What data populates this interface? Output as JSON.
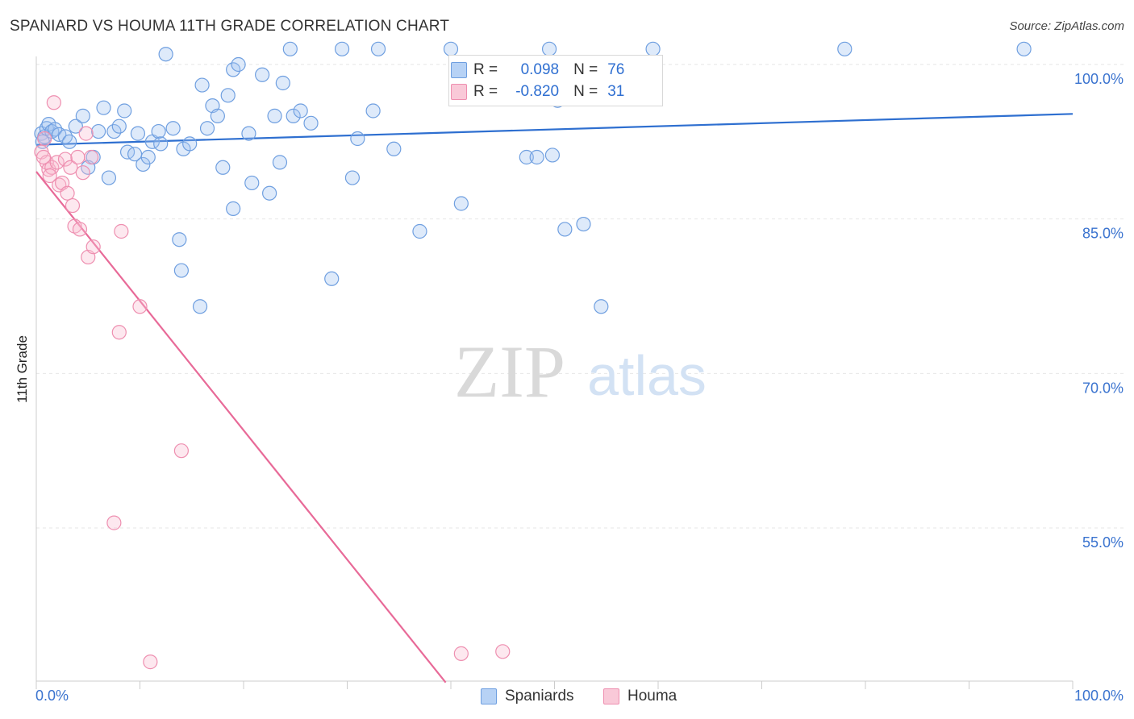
{
  "header": {
    "title": "SPANIARD VS HOUMA 11TH GRADE CORRELATION CHART",
    "source": "Source: ZipAtlas.com"
  },
  "watermark": {
    "zip": "ZIP",
    "atlas": "atlas"
  },
  "legend": {
    "rows": [
      {
        "r_label": "R =",
        "r_value": "0.098",
        "n_label": "N =",
        "n_value": "76",
        "color": "#6f9fe0"
      },
      {
        "r_label": "R =",
        "r_value": "-0.820",
        "n_label": "N =",
        "n_value": "31",
        "color": "#ee8fb0"
      }
    ]
  },
  "bottom_legend": [
    {
      "label": "Spaniards",
      "color": "#6f9fe0"
    },
    {
      "label": "Houma",
      "color": "#ee8fb0"
    }
  ],
  "chart_data": {
    "type": "scatter",
    "title": "SPANIARD VS HOUMA 11TH GRADE CORRELATION CHART",
    "xlabel": "",
    "ylabel": "11th Grade",
    "xlim": [
      0,
      100
    ],
    "ylim": [
      40,
      101.5
    ],
    "x_tick_labels": [
      "0.0%",
      "100.0%"
    ],
    "y_ticks": [
      100,
      85,
      70,
      55
    ],
    "y_tick_labels": [
      "100.0%",
      "85.0%",
      "70.0%",
      "55.0%"
    ],
    "grid": true,
    "legend_position": "top-center",
    "series": [
      {
        "name": "Spaniards",
        "color": "#6f9fe0",
        "trend": {
          "x": [
            0,
            100
          ],
          "y": [
            92.2,
            95.2
          ]
        },
        "points": [
          [
            0.5,
            93.3
          ],
          [
            0.8,
            93.0
          ],
          [
            1.0,
            93.8
          ],
          [
            1.2,
            94.2
          ],
          [
            1.5,
            93.5
          ],
          [
            1.8,
            93.7
          ],
          [
            2.2,
            93.2
          ],
          [
            2.8,
            93.0
          ],
          [
            3.2,
            92.5
          ],
          [
            3.8,
            94.0
          ],
          [
            4.5,
            95.0
          ],
          [
            5.0,
            90.0
          ],
          [
            5.5,
            91.0
          ],
          [
            6.5,
            95.8
          ],
          [
            7.0,
            89.0
          ],
          [
            7.5,
            93.5
          ],
          [
            8.0,
            94.0
          ],
          [
            8.5,
            95.5
          ],
          [
            8.8,
            91.5
          ],
          [
            9.5,
            91.3
          ],
          [
            9.8,
            93.3
          ],
          [
            10.3,
            90.3
          ],
          [
            10.8,
            91.0
          ],
          [
            11.2,
            92.5
          ],
          [
            11.8,
            93.5
          ],
          [
            12.0,
            92.3
          ],
          [
            12.5,
            101.0
          ],
          [
            13.2,
            93.8
          ],
          [
            14.2,
            91.8
          ],
          [
            14.8,
            92.3
          ],
          [
            13.8,
            83.0
          ],
          [
            14.0,
            80.0
          ],
          [
            15.8,
            76.5
          ],
          [
            16.0,
            98.0
          ],
          [
            16.5,
            93.8
          ],
          [
            17.0,
            96.0
          ],
          [
            17.5,
            95.0
          ],
          [
            18.0,
            90.0
          ],
          [
            18.5,
            97.0
          ],
          [
            19.0,
            99.5
          ],
          [
            19.5,
            100.0
          ],
          [
            20.5,
            93.3
          ],
          [
            20.8,
            88.5
          ],
          [
            19.0,
            86.0
          ],
          [
            21.8,
            99.0
          ],
          [
            22.5,
            87.5
          ],
          [
            23.0,
            95.0
          ],
          [
            23.5,
            90.5
          ],
          [
            23.8,
            98.2
          ],
          [
            24.5,
            101.5
          ],
          [
            24.8,
            95.0
          ],
          [
            25.5,
            95.5
          ],
          [
            26.5,
            94.3
          ],
          [
            28.5,
            79.2
          ],
          [
            29.5,
            101.5
          ],
          [
            30.5,
            89.0
          ],
          [
            31.0,
            92.8
          ],
          [
            32.5,
            95.5
          ],
          [
            33.0,
            101.5
          ],
          [
            34.5,
            91.8
          ],
          [
            37.0,
            83.8
          ],
          [
            40.0,
            101.5
          ],
          [
            41.0,
            86.5
          ],
          [
            47.3,
            91.0
          ],
          [
            48.3,
            91.0
          ],
          [
            49.8,
            91.2
          ],
          [
            49.5,
            101.5
          ],
          [
            50.3,
            96.5
          ],
          [
            51.0,
            84.0
          ],
          [
            52.8,
            84.5
          ],
          [
            54.5,
            76.5
          ],
          [
            59.5,
            101.5
          ],
          [
            78.0,
            101.5
          ],
          [
            95.3,
            101.5
          ],
          [
            0.6,
            92.5
          ],
          [
            6.0,
            93.5
          ]
        ]
      },
      {
        "name": "Houma",
        "color": "#ee8fb0",
        "trend": {
          "x": [
            0,
            39.5
          ],
          "y": [
            89.6,
            40
          ]
        },
        "points": [
          [
            0.5,
            91.5
          ],
          [
            0.8,
            92.8
          ],
          [
            1.0,
            90.5
          ],
          [
            1.2,
            89.8
          ],
          [
            1.5,
            90.0
          ],
          [
            1.7,
            96.3
          ],
          [
            2.0,
            90.5
          ],
          [
            2.2,
            88.3
          ],
          [
            2.5,
            88.5
          ],
          [
            2.8,
            90.8
          ],
          [
            3.0,
            87.5
          ],
          [
            3.3,
            90.0
          ],
          [
            3.5,
            86.3
          ],
          [
            3.7,
            84.3
          ],
          [
            4.0,
            91.0
          ],
          [
            4.2,
            84.0
          ],
          [
            4.5,
            89.5
          ],
          [
            4.8,
            93.3
          ],
          [
            5.0,
            81.3
          ],
          [
            5.3,
            91.0
          ],
          [
            5.5,
            82.3
          ],
          [
            8.0,
            74.0
          ],
          [
            7.5,
            55.5
          ],
          [
            8.2,
            83.8
          ],
          [
            10.0,
            76.5
          ],
          [
            11.0,
            42.0
          ],
          [
            14.0,
            62.5
          ],
          [
            41.0,
            42.8
          ],
          [
            45.0,
            43.0
          ],
          [
            0.7,
            91.0
          ],
          [
            1.3,
            89.2
          ]
        ]
      }
    ]
  }
}
